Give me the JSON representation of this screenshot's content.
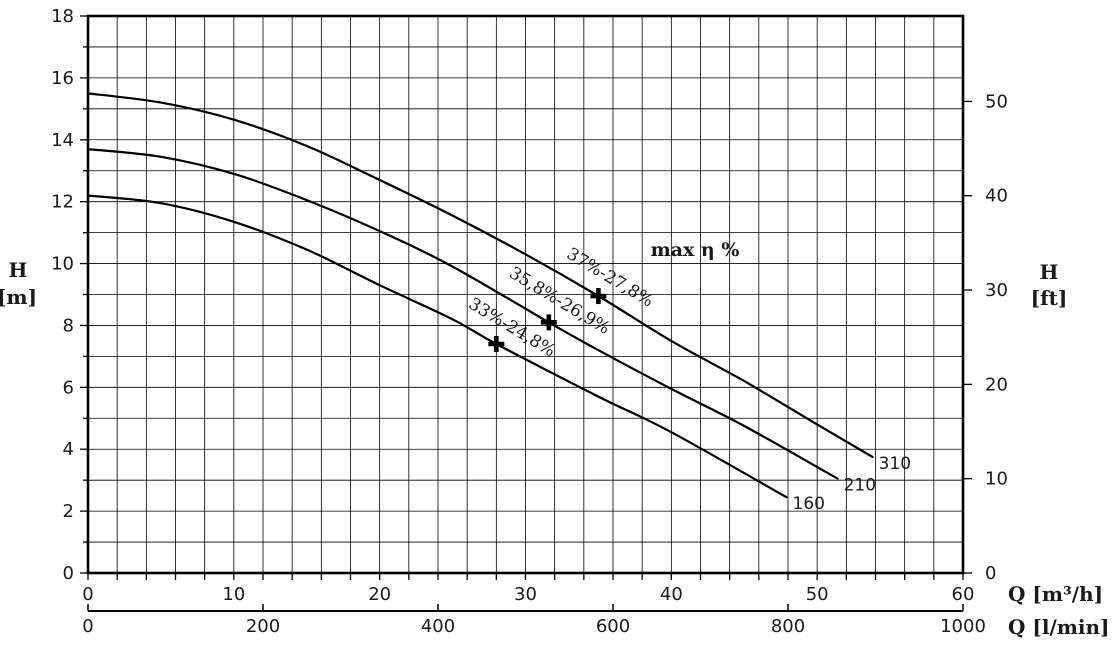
{
  "chart_data": {
    "type": "line",
    "title": "",
    "background_color": "#ffffff",
    "grid": {
      "on": true,
      "x_step": 2,
      "y_step": 1,
      "color": "#1a1a1a"
    },
    "line_color": "#000000",
    "axes": {
      "x_primary": {
        "label": "Q [m³/h]",
        "min": 0,
        "max": 60,
        "major_tick_labels": [
          0,
          10,
          20,
          30,
          40,
          50,
          60
        ],
        "minor_tick_step": 2
      },
      "x_secondary": {
        "label": "Q [l/min]",
        "min": 0,
        "max": 1000,
        "tick_labels": [
          0,
          200,
          400,
          600,
          800,
          1000
        ]
      },
      "y_left": {
        "symbol": "H",
        "unit": "[m]",
        "min": 0,
        "max": 18,
        "major_tick_labels": [
          0,
          2,
          4,
          6,
          8,
          10,
          12,
          14,
          16,
          18
        ],
        "minor_tick_step": 1
      },
      "y_right": {
        "symbol": "H",
        "unit": "[ft]",
        "tick_labels": [
          0,
          10,
          20,
          30,
          40,
          50
        ],
        "meters_per_foot": 0.3048
      }
    },
    "series": [
      {
        "name": "310",
        "end_label": "310",
        "points": [
          [
            0,
            15.5
          ],
          [
            5,
            15.2
          ],
          [
            10,
            14.65
          ],
          [
            15,
            13.8
          ],
          [
            20,
            12.7
          ],
          [
            25,
            11.55
          ],
          [
            30,
            10.3
          ],
          [
            35,
            8.95
          ],
          [
            40,
            7.5
          ],
          [
            45,
            6.2
          ],
          [
            50,
            4.8
          ],
          [
            53.8,
            3.75
          ]
        ]
      },
      {
        "name": "210",
        "end_label": "210",
        "points": [
          [
            0,
            13.7
          ],
          [
            5,
            13.45
          ],
          [
            10,
            12.9
          ],
          [
            15,
            12.05
          ],
          [
            20,
            11.05
          ],
          [
            25,
            9.9
          ],
          [
            31.6,
            8.1
          ],
          [
            35,
            7.2
          ],
          [
            40,
            5.95
          ],
          [
            45,
            4.75
          ],
          [
            51.4,
            3.05
          ]
        ]
      },
      {
        "name": "160",
        "end_label": "160",
        "points": [
          [
            0,
            12.2
          ],
          [
            5,
            11.95
          ],
          [
            10,
            11.35
          ],
          [
            15,
            10.45
          ],
          [
            20,
            9.3
          ],
          [
            25,
            8.2
          ],
          [
            28,
            7.4
          ],
          [
            35,
            5.7
          ],
          [
            40,
            4.55
          ],
          [
            47.9,
            2.45
          ]
        ]
      }
    ],
    "efficiency_markers": [
      {
        "series": "310",
        "q": 35.0,
        "h": 8.95,
        "label": "37%-27,8%"
      },
      {
        "series": "210",
        "q": 31.6,
        "h": 8.1,
        "label": "35,8%-26,9%"
      },
      {
        "series": "160",
        "q": 28.0,
        "h": 7.4,
        "label": "33%-24,8%"
      }
    ],
    "annotation": {
      "text": "max η %",
      "q": 41.6,
      "h": 10.43
    }
  }
}
